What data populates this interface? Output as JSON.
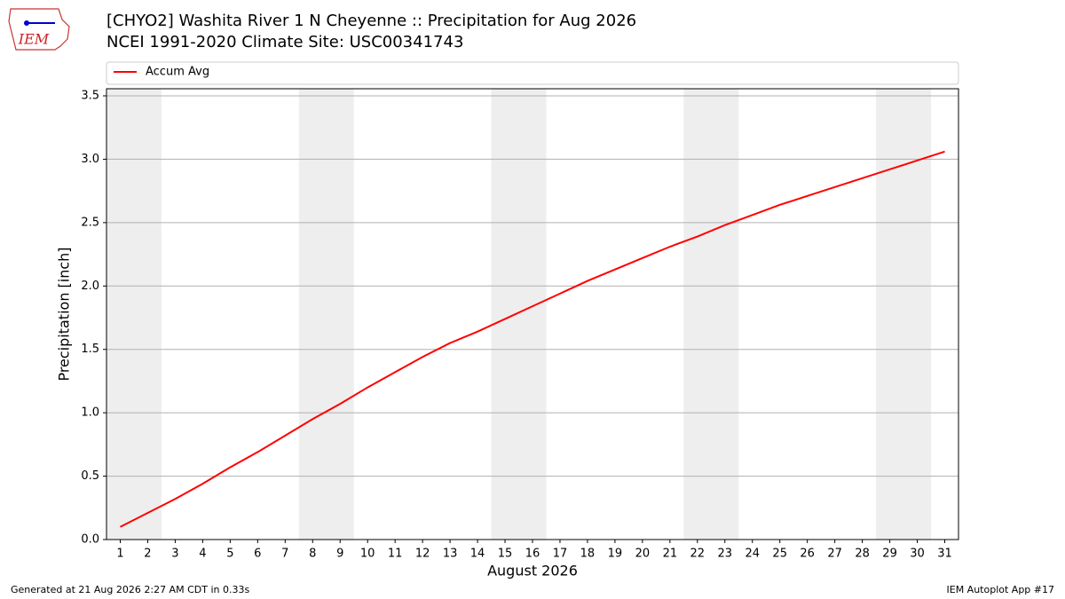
{
  "chart_data": {
    "type": "line",
    "title": "[CHYO2] Washita River 1 N Cheyenne :: Precipitation for Aug 2026",
    "subtitle": "NCEI 1991-2020 Climate Site: USC00341743",
    "x_label": "August 2026",
    "y_label": "Precipitation [inch]",
    "x": [
      1,
      2,
      3,
      4,
      5,
      6,
      7,
      8,
      9,
      10,
      11,
      12,
      13,
      14,
      15,
      16,
      17,
      18,
      19,
      20,
      21,
      22,
      23,
      24,
      25,
      26,
      27,
      28,
      29,
      30,
      31
    ],
    "series": [
      {
        "name": "Accum Avg",
        "color": "#ff0000",
        "values": [
          0.1,
          0.21,
          0.32,
          0.44,
          0.57,
          0.69,
          0.82,
          0.95,
          1.07,
          1.2,
          1.32,
          1.44,
          1.55,
          1.64,
          1.74,
          1.84,
          1.94,
          2.04,
          2.13,
          2.22,
          2.31,
          2.39,
          2.48,
          2.56,
          2.64,
          2.71,
          2.78,
          2.85,
          2.92,
          2.99,
          3.06
        ]
      }
    ],
    "xlim": [
      0.5,
      31.5
    ],
    "xticks": [
      1,
      2,
      3,
      4,
      5,
      6,
      7,
      8,
      9,
      10,
      11,
      12,
      13,
      14,
      15,
      16,
      17,
      18,
      19,
      20,
      21,
      22,
      23,
      24,
      25,
      26,
      27,
      28,
      29,
      30,
      31
    ],
    "ylim": [
      0,
      3.556
    ],
    "yticks": [
      {
        "value": 0,
        "label": "0.0"
      },
      0.5,
      {
        "value": 1,
        "label": "1.0"
      },
      1.5,
      {
        "value": 2,
        "label": "2.0"
      },
      2.5,
      {
        "value": 3,
        "label": "3.0"
      },
      3.5
    ],
    "grid": true,
    "shaded_spans": [
      [
        0.5,
        2.5
      ],
      [
        7.5,
        9.5
      ],
      [
        14.5,
        16.5
      ],
      [
        21.5,
        23.5
      ],
      [
        28.5,
        30.5
      ]
    ],
    "shade_color": "#eeeeee",
    "legend": "top"
  },
  "logo_text": "IEM",
  "footer_left": "Generated at 21 Aug 2026 2:27 AM CDT in 0.33s",
  "footer_right": "IEM Autoplot App #17"
}
